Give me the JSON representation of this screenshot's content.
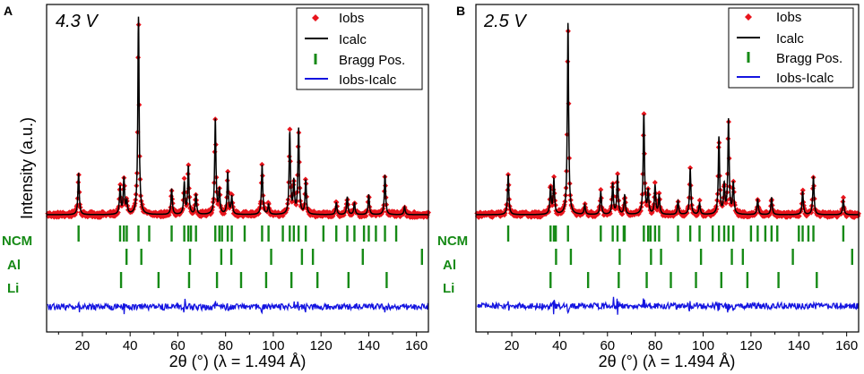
{
  "chart_data": [
    {
      "panel_label": "A",
      "voltage": "4.3 V",
      "type": "line",
      "xlabel": "2θ (°) (λ = 1.494 Å)",
      "ylabel": "Intensity (a.u.)",
      "xlim": [
        5,
        165
      ],
      "xticks": [
        20,
        40,
        60,
        80,
        100,
        120,
        140,
        160
      ],
      "legend": {
        "placement": "top-right",
        "entries": [
          "Iobs",
          "Icalc",
          "Bragg Pos.",
          "Iobs-Icalc"
        ]
      },
      "background": 0,
      "peaks": [
        {
          "x": 18.4,
          "h": 0.21
        },
        {
          "x": 35.8,
          "h": 0.14
        },
        {
          "x": 37.4,
          "h": 0.18
        },
        {
          "x": 38.6,
          "h": 0.06
        },
        {
          "x": 43.5,
          "h": 1.0
        },
        {
          "x": 57.4,
          "h": 0.13
        },
        {
          "x": 62.7,
          "h": 0.16
        },
        {
          "x": 64.4,
          "h": 0.24
        },
        {
          "x": 67.6,
          "h": 0.1
        },
        {
          "x": 75.7,
          "h": 0.48
        },
        {
          "x": 77.4,
          "h": 0.12
        },
        {
          "x": 80.9,
          "h": 0.21
        },
        {
          "x": 82.6,
          "h": 0.09
        },
        {
          "x": 95.3,
          "h": 0.25
        },
        {
          "x": 98.0,
          "h": 0.05
        },
        {
          "x": 106.9,
          "h": 0.41
        },
        {
          "x": 108.6,
          "h": 0.16
        },
        {
          "x": 110.6,
          "h": 0.43
        },
        {
          "x": 113.6,
          "h": 0.17
        },
        {
          "x": 126.4,
          "h": 0.06
        },
        {
          "x": 131.0,
          "h": 0.09
        },
        {
          "x": 134.0,
          "h": 0.06
        },
        {
          "x": 140.0,
          "h": 0.1
        },
        {
          "x": 146.8,
          "h": 0.2
        },
        {
          "x": 155.0,
          "h": 0.04
        }
      ],
      "bragg_positions": {
        "NCM": [
          18.4,
          35.8,
          37.4,
          38.6,
          43.5,
          48.0,
          57.4,
          62.7,
          64.4,
          65.5,
          67.6,
          75.7,
          77.4,
          78.5,
          80.9,
          82.6,
          88.0,
          95.3,
          98.0,
          104.0,
          106.9,
          108.6,
          110.6,
          113.6,
          121.0,
          126.4,
          131.0,
          134.0,
          138.0,
          140.0,
          143.0,
          146.8,
          151.5
        ],
        "Al": [
          38.5,
          44.7,
          65.1,
          78.2,
          82.4,
          99.1,
          112.0,
          116.6,
          137.5,
          162.3
        ],
        "Li": [
          36.2,
          51.9,
          64.7,
          76.4,
          86.5,
          97.0,
          107.6,
          118.5,
          131.5,
          147.5
        ]
      }
    },
    {
      "panel_label": "B",
      "voltage": "2.5 V",
      "type": "line",
      "xlabel": "2θ (°) (λ = 1.494 Å)",
      "ylabel": "",
      "xlim": [
        5,
        165
      ],
      "xticks": [
        20,
        40,
        60,
        80,
        100,
        120,
        140,
        160
      ],
      "legend": {
        "placement": "top-right",
        "entries": [
          "Iobs",
          "Icalc",
          "Bragg Pos.",
          "Iobs-Icalc"
        ]
      },
      "background": 0,
      "peaks": [
        {
          "x": 18.5,
          "h": 0.21
        },
        {
          "x": 36.2,
          "h": 0.14
        },
        {
          "x": 37.6,
          "h": 0.18
        },
        {
          "x": 43.5,
          "h": 1.0
        },
        {
          "x": 50.5,
          "h": 0.05
        },
        {
          "x": 57.2,
          "h": 0.12
        },
        {
          "x": 62.2,
          "h": 0.16
        },
        {
          "x": 64.2,
          "h": 0.2
        },
        {
          "x": 67.2,
          "h": 0.1
        },
        {
          "x": 75.2,
          "h": 0.52
        },
        {
          "x": 77.0,
          "h": 0.12
        },
        {
          "x": 79.9,
          "h": 0.15
        },
        {
          "x": 81.6,
          "h": 0.1
        },
        {
          "x": 89.5,
          "h": 0.07
        },
        {
          "x": 94.6,
          "h": 0.24
        },
        {
          "x": 98.5,
          "h": 0.06
        },
        {
          "x": 106.6,
          "h": 0.4
        },
        {
          "x": 108.8,
          "h": 0.15
        },
        {
          "x": 110.6,
          "h": 0.49
        },
        {
          "x": 112.6,
          "h": 0.16
        },
        {
          "x": 122.8,
          "h": 0.08
        },
        {
          "x": 128.6,
          "h": 0.09
        },
        {
          "x": 141.6,
          "h": 0.12
        },
        {
          "x": 146.1,
          "h": 0.2
        },
        {
          "x": 158.6,
          "h": 0.08
        }
      ],
      "bragg_positions": {
        "NCM": [
          18.5,
          36.2,
          37.6,
          38.4,
          43.5,
          57.2,
          62.2,
          64.2,
          66.8,
          67.2,
          75.2,
          77.0,
          78.0,
          79.9,
          81.6,
          89.5,
          94.6,
          98.5,
          104.0,
          106.6,
          108.8,
          110.6,
          112.6,
          120.0,
          122.8,
          126.0,
          128.6,
          131.0,
          140.0,
          141.6,
          144.0,
          146.1,
          158.6
        ],
        "Al": [
          38.5,
          44.7,
          65.1,
          78.2,
          82.4,
          99.1,
          112.0,
          116.6,
          137.5,
          162.3
        ],
        "Li": [
          36.2,
          51.9,
          64.7,
          76.4,
          86.5,
          97.0,
          107.6,
          118.5,
          131.5,
          147.5
        ]
      }
    }
  ],
  "colors": {
    "iobs": "#e8141c",
    "icalc": "#000000",
    "bragg": "#168a16",
    "diff": "#1414e0",
    "axis": "#000000"
  }
}
